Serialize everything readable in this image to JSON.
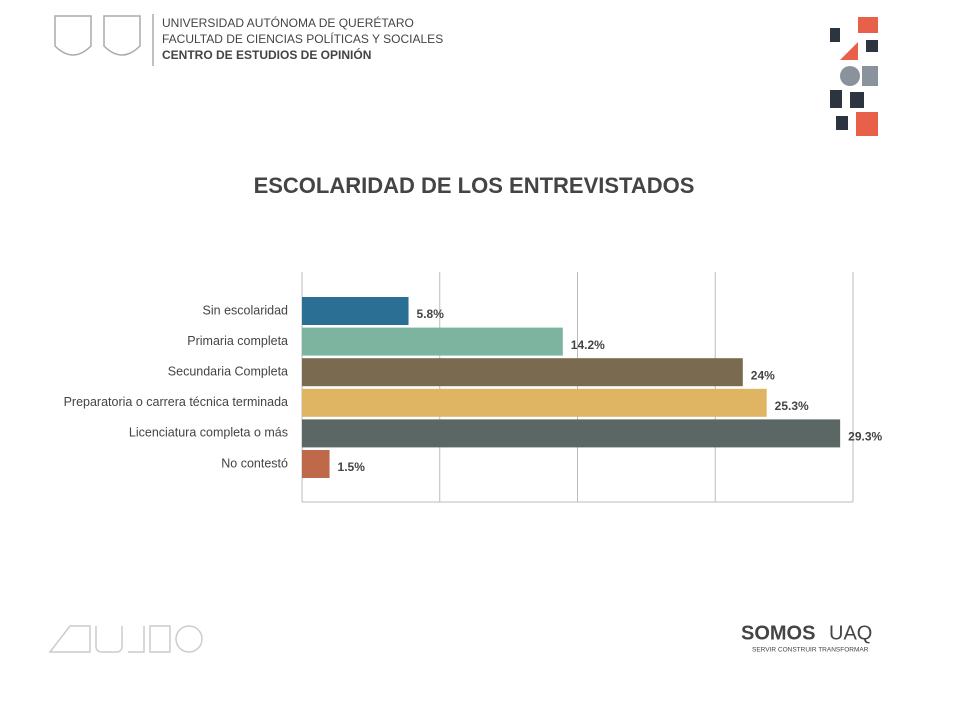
{
  "header": {
    "lines": [
      "UNIVERSIDAD AUTÓNOMA DE QUERÉTARO",
      "FACULTAD DE CIENCIAS POLÍTICAS Y SOCIALES",
      "CENTRO DE ESTUDIOS DE OPINIÓN"
    ]
  },
  "footer": {
    "brand_bold": "SOMOS",
    "brand": "UAQ",
    "tagline": "SERVIR CONSTRUIR TRANSFORMAR"
  },
  "chart_data": {
    "type": "hbar",
    "title": "ESCOLARIDAD DE LOS ENTREVISTADOS",
    "categories": [
      "Sin escolaridad",
      "Primaria completa",
      "Secundaria Completa",
      "Preparatoria o carrera técnica terminada",
      "Licenciatura completa o más",
      "No contestó"
    ],
    "values": [
      5.8,
      14.2,
      24,
      25.3,
      29.3,
      1.5
    ],
    "value_labels": [
      "5.8%",
      "14.2%",
      "24%",
      "25.3%",
      "29.3%",
      "1.5%"
    ],
    "colors": [
      "#2b6f94",
      "#7db4a0",
      "#7a6a4f",
      "#dfb463",
      "#5b6765",
      "#c0684a"
    ],
    "xlim": [
      0,
      30
    ],
    "xticks": [
      0,
      7.5,
      15,
      22.5,
      30
    ],
    "grid": true
  }
}
